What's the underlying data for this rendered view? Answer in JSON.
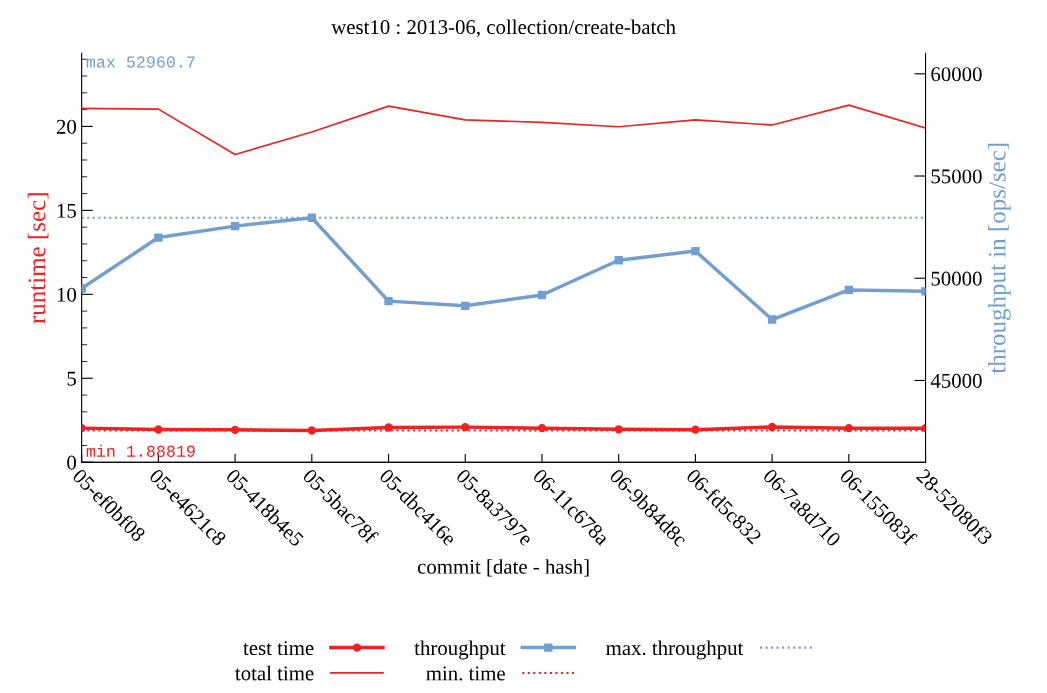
{
  "chart_data": {
    "type": "line",
    "title": "west10 : 2013-06, collection/create-batch",
    "xlabel": "commit [date - hash]",
    "ylabel": "runtime [sec]",
    "y2label": "throughput in [ops/sec]",
    "categories": [
      "05-ef0bf08",
      "05-e4621c8",
      "05-418b4e5",
      "05-5bac78f",
      "05-dbc416e",
      "05-8a3797e",
      "06-11c678a",
      "06-9b84d8c",
      "06-fd5c832",
      "06-7a8d710",
      "06-155083f",
      "28-52080f3"
    ],
    "series": [
      {
        "name": "test time",
        "color": "#ee2222",
        "marker": "circle",
        "values": [
          2.03,
          1.95,
          1.93,
          1.89,
          2.07,
          2.09,
          2.03,
          1.96,
          1.94,
          2.1,
          2.03,
          2.03
        ]
      },
      {
        "name": "total time",
        "color": "#ee2222",
        "marker": "none",
        "values": [
          21.07,
          21.03,
          18.33,
          19.67,
          21.21,
          20.39,
          20.24,
          19.98,
          20.39,
          20.08,
          21.27,
          19.9
        ]
      },
      {
        "name": "throughput",
        "color": "#729fcf",
        "marker": "square",
        "axis": "y2",
        "values": [
          49500,
          51990,
          52550,
          52960.7,
          48880,
          48650,
          49180,
          50880,
          51330,
          47980,
          49430,
          49360
        ]
      }
    ],
    "ref_lines": [
      {
        "axis": "y",
        "value": 1.88819,
        "label": "min. time",
        "color": "#ee2222",
        "line_style": "dotted"
      },
      {
        "axis": "y2",
        "value": 52960.7,
        "label": "max. throughput",
        "color": "#729fcf",
        "line_style": "dotted"
      }
    ],
    "annotations": [
      "min 1.88819",
      "max 52960.7"
    ],
    "ylim": [
      0,
      24.35
    ],
    "yticks": [
      0,
      5,
      10,
      15,
      20
    ],
    "y2lim": [
      41000,
      61000
    ],
    "y2ticks": [
      45000,
      50000,
      55000,
      60000
    ],
    "grid": false,
    "legend": "bottom"
  }
}
